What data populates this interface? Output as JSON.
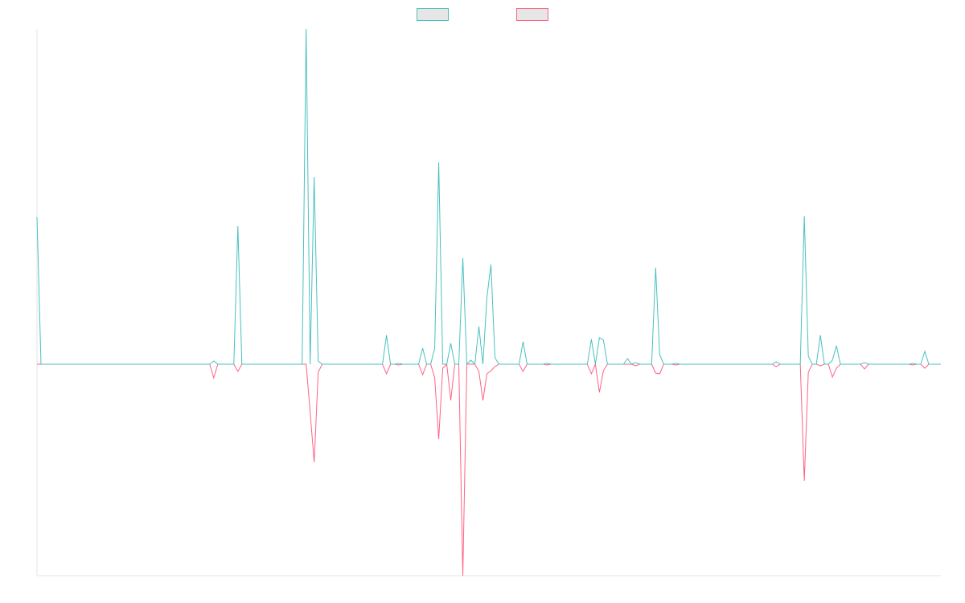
{
  "chart_data": {
    "type": "line",
    "legend": "top",
    "ylim": [
      -263,
      417
    ],
    "categories": [
      null,
      null,
      null,
      null,
      null,
      null,
      null,
      null,
      null,
      null,
      null,
      null,
      null,
      null,
      null,
      null,
      null,
      null,
      null,
      null,
      null,
      null,
      null,
      null,
      null,
      null,
      null,
      null,
      null,
      null,
      null,
      null,
      null,
      null,
      null,
      null,
      null,
      null,
      null,
      null,
      null,
      null,
      null,
      null,
      null,
      null,
      null,
      null,
      null,
      null,
      null,
      null,
      null,
      null,
      null,
      null,
      null,
      null,
      null,
      null,
      null,
      null,
      null,
      null,
      null,
      null,
      null,
      null,
      null,
      null,
      null,
      null,
      null,
      null,
      null,
      null,
      null,
      null,
      null,
      null,
      null,
      null,
      null,
      null,
      null,
      null,
      null,
      null,
      null,
      null,
      null,
      null,
      null,
      null,
      null,
      null,
      null,
      null,
      null,
      null,
      null,
      null,
      null,
      null,
      null,
      null,
      null,
      null,
      null,
      null,
      null,
      null,
      null,
      null,
      null,
      null,
      null,
      null,
      null,
      null,
      null,
      null,
      null,
      null,
      null,
      null,
      null,
      null,
      null,
      null,
      null,
      null,
      null,
      null,
      null,
      null,
      null,
      null,
      null,
      null,
      null,
      null,
      null,
      null,
      null,
      null,
      null,
      null,
      null,
      null,
      null,
      null,
      null,
      null,
      null,
      null,
      null,
      null,
      null,
      null,
      null,
      null,
      null,
      null,
      null,
      null,
      null,
      null,
      null,
      null,
      null,
      null,
      null,
      null,
      null,
      null,
      null,
      null,
      null,
      null,
      null,
      null,
      null,
      null,
      null,
      null,
      null,
      null,
      null,
      null,
      null,
      null,
      null,
      null,
      null,
      null,
      null,
      null,
      null,
      null,
      null,
      null,
      null,
      null,
      null,
      null,
      null,
      null,
      null,
      null,
      null,
      null,
      null,
      null,
      null,
      null,
      null,
      null,
      null,
      null,
      null,
      null,
      null,
      null,
      null,
      null
    ],
    "series": [
      {
        "color": "#4bc0c0",
        "values": [
          183,
          0,
          0,
          0,
          0,
          0,
          0,
          0,
          0,
          0,
          0,
          0,
          0,
          0,
          0,
          0,
          0,
          0,
          0,
          0,
          0,
          0,
          0,
          0,
          0,
          0,
          0,
          0,
          0,
          0,
          0,
          0,
          0,
          0,
          0,
          0,
          0,
          0,
          0,
          0,
          0,
          0,
          0,
          0,
          4,
          0,
          0,
          0,
          0,
          0,
          172,
          0,
          0,
          0,
          0,
          0,
          0,
          0,
          0,
          0,
          0,
          0,
          0,
          0,
          0,
          0,
          0,
          417,
          0,
          233,
          4,
          0,
          0,
          0,
          0,
          0,
          0,
          0,
          0,
          0,
          0,
          0,
          0,
          0,
          0,
          0,
          0,
          36,
          0,
          0,
          1,
          0,
          0,
          0,
          0,
          0,
          20,
          0,
          0,
          20,
          251,
          0,
          0,
          26,
          0,
          0,
          132,
          0,
          5,
          0,
          47,
          0,
          83,
          124,
          8,
          0,
          0,
          0,
          0,
          0,
          0,
          28,
          0,
          0,
          0,
          0,
          0,
          1,
          0,
          0,
          0,
          0,
          0,
          0,
          0,
          0,
          0,
          0,
          31,
          0,
          33,
          30,
          0,
          0,
          0,
          0,
          0,
          7,
          0,
          2,
          0,
          0,
          0,
          0,
          120,
          12,
          0,
          0,
          0,
          1,
          0,
          0,
          0,
          0,
          0,
          0,
          0,
          0,
          0,
          0,
          0,
          0,
          0,
          0,
          0,
          0,
          0,
          0,
          0,
          0,
          0,
          0,
          0,
          0,
          3,
          0,
          0,
          0,
          0,
          0,
          0,
          184,
          10,
          0,
          0,
          36,
          0,
          0,
          5,
          23,
          0,
          0,
          0,
          0,
          0,
          0,
          2,
          0,
          0,
          0,
          0,
          0,
          0,
          0,
          0,
          0,
          0,
          0,
          1,
          0,
          0,
          16,
          0,
          0,
          0,
          0
        ]
      },
      {
        "color": "#ff6384",
        "values": [
          0,
          0,
          0,
          0,
          0,
          0,
          0,
          0,
          0,
          0,
          0,
          0,
          0,
          0,
          0,
          0,
          0,
          0,
          0,
          0,
          0,
          0,
          0,
          0,
          0,
          0,
          0,
          0,
          0,
          0,
          0,
          0,
          0,
          0,
          0,
          0,
          0,
          0,
          0,
          0,
          0,
          0,
          0,
          0,
          -17,
          0,
          0,
          0,
          0,
          0,
          -9,
          0,
          0,
          0,
          0,
          0,
          0,
          0,
          0,
          0,
          0,
          0,
          0,
          0,
          0,
          0,
          0,
          0,
          -60,
          -122,
          -10,
          0,
          0,
          0,
          0,
          0,
          0,
          0,
          0,
          0,
          0,
          0,
          0,
          0,
          0,
          0,
          0,
          -12,
          0,
          0,
          -1,
          0,
          0,
          0,
          0,
          0,
          -13,
          0,
          0,
          -17,
          -93,
          -5,
          0,
          -45,
          0,
          0,
          -263,
          0,
          0,
          0,
          -9,
          -45,
          -12,
          -8,
          -3,
          0,
          0,
          0,
          0,
          0,
          0,
          -9,
          0,
          0,
          0,
          0,
          0,
          -1,
          0,
          0,
          0,
          0,
          0,
          0,
          0,
          0,
          0,
          0,
          -12,
          0,
          -35,
          -8,
          0,
          0,
          0,
          0,
          0,
          0,
          0,
          -2,
          0,
          0,
          0,
          0,
          -11,
          -12,
          0,
          0,
          0,
          -1,
          0,
          0,
          0,
          0,
          0,
          0,
          0,
          0,
          0,
          0,
          0,
          0,
          0,
          0,
          0,
          0,
          0,
          0,
          0,
          0,
          0,
          0,
          0,
          0,
          -3,
          0,
          0,
          0,
          0,
          0,
          0,
          -145,
          -10,
          0,
          0,
          -2,
          0,
          0,
          -16,
          -5,
          0,
          0,
          0,
          0,
          0,
          0,
          -6,
          0,
          0,
          0,
          0,
          0,
          0,
          0,
          0,
          0,
          0,
          0,
          -1,
          0,
          0,
          -5,
          0,
          0,
          0,
          0
        ]
      }
    ]
  }
}
